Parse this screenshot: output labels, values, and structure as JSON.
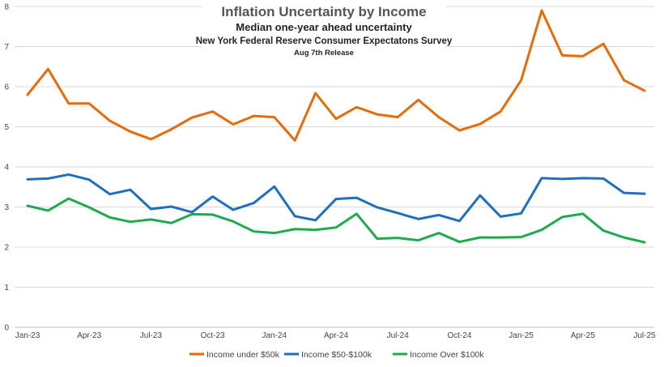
{
  "chart_data": {
    "type": "line",
    "title": "Inflation Uncertainty by Income",
    "subtitle": "Median one-year ahead uncertainty",
    "source_line": "New York Federal Reserve Consumer Expectatons Survey",
    "release_line": "Aug 7th Release",
    "x": [
      "Jan-23",
      "Feb-23",
      "Mar-23",
      "Apr-23",
      "May-23",
      "Jun-23",
      "Jul-23",
      "Aug-23",
      "Sep-23",
      "Oct-23",
      "Nov-23",
      "Dec-23",
      "Jan-24",
      "Feb-24",
      "Mar-24",
      "Apr-24",
      "May-24",
      "Jun-24",
      "Jul-24",
      "Aug-24",
      "Sep-24",
      "Oct-24",
      "Nov-24",
      "Dec-24",
      "Jan-25",
      "Feb-25",
      "Mar-25",
      "Apr-25",
      "May-25",
      "Jun-25",
      "Jul-25"
    ],
    "x_tick_labels": [
      "Jan-23",
      "Apr-23",
      "Jul-23",
      "Oct-23",
      "Jan-24",
      "Apr-24",
      "Jul-24",
      "Oct-24",
      "Jan-25",
      "Apr-25",
      "Jul-25"
    ],
    "ylim": [
      0,
      8
    ],
    "y_ticks": [
      0,
      1,
      2,
      3,
      4,
      5,
      6,
      7,
      8
    ],
    "grid": true,
    "legend_position": "bottom",
    "series": [
      {
        "name": "Income under $50k",
        "color": "#E46C0A",
        "values": [
          5.8,
          6.44,
          5.58,
          5.58,
          5.15,
          4.88,
          4.69,
          4.94,
          5.23,
          5.38,
          5.06,
          5.27,
          5.24,
          4.66,
          5.84,
          5.2,
          5.49,
          5.31,
          5.24,
          5.67,
          5.24,
          4.91,
          5.07,
          5.38,
          6.16,
          7.9,
          6.78,
          6.76,
          7.07,
          6.16,
          5.9
        ]
      },
      {
        "name": "Income $50-$100k",
        "color": "#1F6FBF",
        "values": [
          3.69,
          3.71,
          3.81,
          3.68,
          3.32,
          3.43,
          2.95,
          3.01,
          2.87,
          3.26,
          2.93,
          3.1,
          3.51,
          2.77,
          2.67,
          3.2,
          3.23,
          2.99,
          2.85,
          2.7,
          2.8,
          2.65,
          3.29,
          2.76,
          2.84,
          3.72,
          3.7,
          3.72,
          3.71,
          3.35,
          3.33
        ]
      },
      {
        "name": "Income Over $100k",
        "color": "#1FAA4F",
        "values": [
          3.03,
          2.91,
          3.21,
          2.99,
          2.74,
          2.63,
          2.69,
          2.6,
          2.82,
          2.81,
          2.64,
          2.39,
          2.35,
          2.45,
          2.43,
          2.49,
          2.83,
          2.21,
          2.23,
          2.17,
          2.35,
          2.13,
          2.24,
          2.24,
          2.25,
          2.43,
          2.75,
          2.83,
          2.41,
          2.24,
          2.12
        ]
      }
    ]
  }
}
